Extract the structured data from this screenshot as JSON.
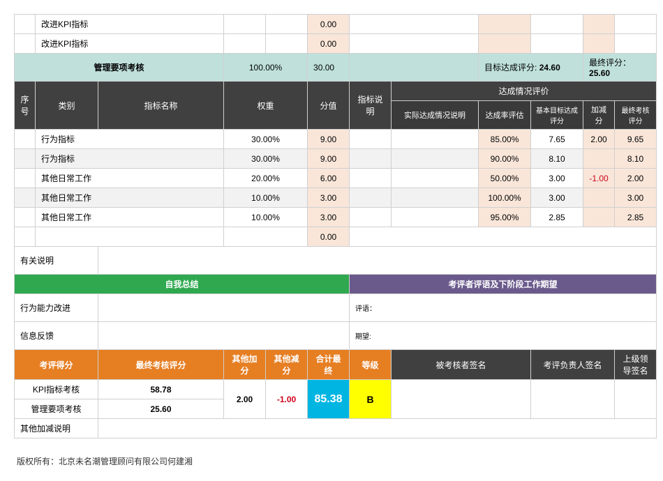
{
  "top": {
    "kpi_label": "改进KPI指标",
    "zero": "0.00"
  },
  "mgmt_header": {
    "title": "管理要项考核",
    "pct": "100.00%",
    "score": "30.00",
    "target_label": "目标达成评分:",
    "target_val": "24.60",
    "final_label": "最终评分：",
    "final_val": "25.60"
  },
  "cols": {
    "seq": "序号",
    "cat": "类别",
    "name": "指标名称",
    "weight": "权重",
    "val": "分值",
    "desc": "指标说明",
    "achieve_group": "达成情况评价",
    "actual": "实际达成情况说明",
    "rate": "达成率评估",
    "base": "基本目标达成评分",
    "adj": "加减分",
    "final": "最终考核评分"
  },
  "rows": [
    {
      "cat": "行为指标",
      "w": "30.00%",
      "v": "9.00",
      "rate": "85.00%",
      "base": "7.65",
      "adj": "2.00",
      "adj_red": false,
      "fin": "9.65",
      "alt": false
    },
    {
      "cat": "行为指标",
      "w": "30.00%",
      "v": "9.00",
      "rate": "90.00%",
      "base": "8.10",
      "adj": "",
      "adj_red": false,
      "fin": "8.10",
      "alt": true
    },
    {
      "cat": "其他日常工作",
      "w": "20.00%",
      "v": "6.00",
      "rate": "50.00%",
      "base": "3.00",
      "adj": "-1.00",
      "adj_red": true,
      "fin": "2.00",
      "alt": false
    },
    {
      "cat": "其他日常工作",
      "w": "10.00%",
      "v": "3.00",
      "rate": "100.00%",
      "base": "3.00",
      "adj": "",
      "adj_red": false,
      "fin": "3.00",
      "alt": true
    },
    {
      "cat": "其他日常工作",
      "w": "10.00%",
      "v": "3.00",
      "rate": "95.00%",
      "base": "2.85",
      "adj": "",
      "adj_red": false,
      "fin": "2.85",
      "alt": false
    }
  ],
  "blank_val": "0.00",
  "notes_label": "有关说明",
  "self_summary": "自我总结",
  "reviewer_summary": "考评者评语及下阶段工作期望",
  "behavior_improve": "行为能力改进",
  "info_feedback": "信息反馈",
  "comment_label": "评语：",
  "expect_label": "期望:",
  "result": {
    "score_label": "考评得分",
    "final_label": "最终考核评分",
    "add_label": "其他加分",
    "sub_label": "其他减分",
    "total_label": "合计最终",
    "grade_label": "等级",
    "sig1": "被考核者签名",
    "sig2": "考评负责人签名",
    "sig3": "上级领导签名",
    "kpi_name": "KPI指标考核",
    "kpi_score": "58.78",
    "mgmt_name": "管理要项考核",
    "mgmt_score": "25.60",
    "add": "2.00",
    "sub": "-1.00",
    "total": "85.38",
    "grade": "B",
    "adj_desc": "其他加减说明"
  },
  "copyright": "版权所有：北京未名潮管理顾问有限公司何建湘"
}
